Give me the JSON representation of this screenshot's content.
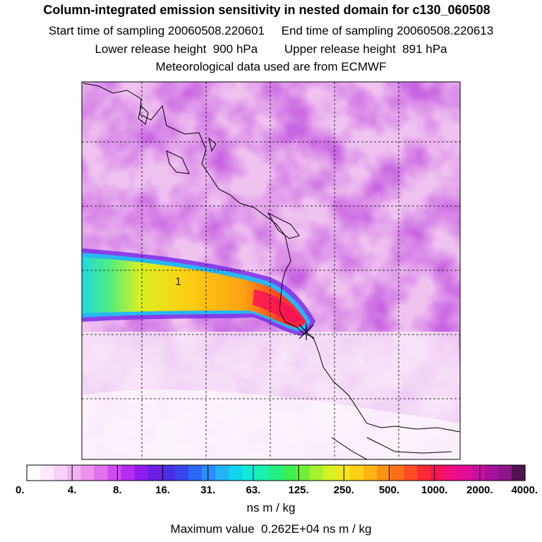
{
  "header": {
    "title": "Column-integrated emission sensitivity in nested domain for c130_060508",
    "start_label": "Start time of sampling",
    "start_value": "20060508.220601",
    "end_label": "End time of sampling",
    "end_value": "20060508.220613",
    "lower_label": "Lower release height",
    "lower_value": "900 hPa",
    "upper_label": "Upper release height",
    "upper_value": "891 hPa",
    "met_line": "Meteorological data used are from ECMWF"
  },
  "map": {
    "plume_contour_label": "1",
    "release_marker": "release-point-cross"
  },
  "colorbar": {
    "tick_labels": [
      "0.",
      "4.",
      "8.",
      "16.",
      "31.",
      "63.",
      "125.",
      "250.",
      "500.",
      "1000.",
      "2000.",
      "4000."
    ],
    "colors": [
      "#ffffff",
      "#fde8fd",
      "#f8d0f8",
      "#f3b2f3",
      "#ec92ec",
      "#e272ea",
      "#cf4cf0",
      "#b52cf2",
      "#8f1cee",
      "#6a1ee6",
      "#4a2ee6",
      "#3746ee",
      "#2c68f6",
      "#2c8cfc",
      "#23b2f6",
      "#13d2ee",
      "#10ecd8",
      "#18f0ae",
      "#24ee82",
      "#3cee50",
      "#70f03a",
      "#a6f22e",
      "#d6f024",
      "#f4e61a",
      "#fcd014",
      "#fcb412",
      "#fc9212",
      "#fc6e18",
      "#fc4e24",
      "#fc2a36",
      "#f81258",
      "#f00e80",
      "#e20e96",
      "#c8109e",
      "#a6129a",
      "#8a168a",
      "#52124e"
    ],
    "units": "ns m / kg"
  },
  "footer": {
    "max_label": "Maximum value",
    "max_value": "0.262E+04",
    "max_units": "ns m / kg"
  }
}
